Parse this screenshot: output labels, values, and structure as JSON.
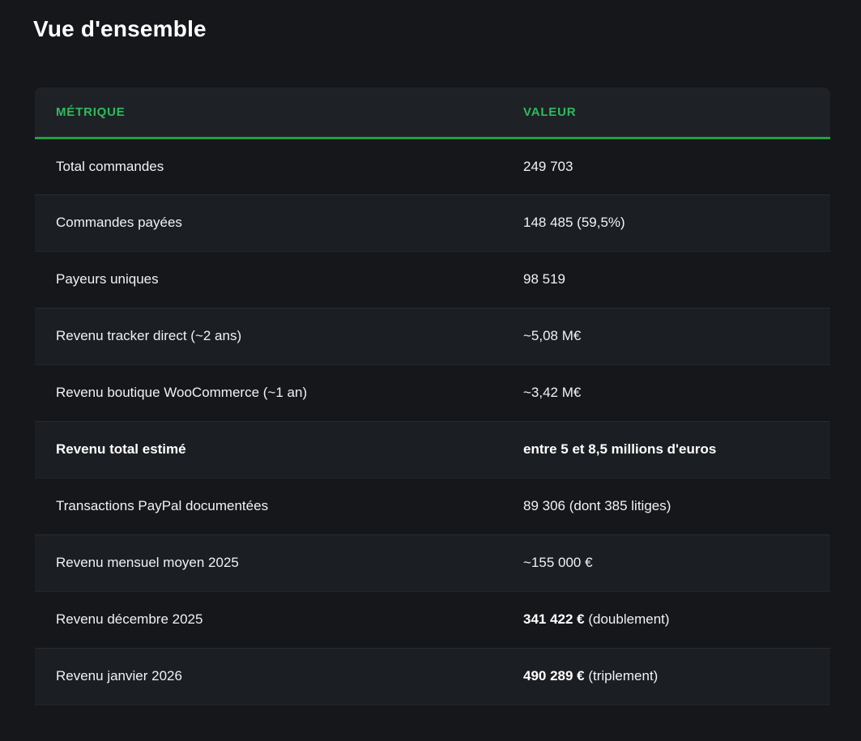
{
  "title": "Vue d'ensemble",
  "colors": {
    "accent_green_text": "#2dbb5c",
    "accent_green_line": "#23a03f",
    "page_background": "#15171b",
    "row_alt_background": "#1b1e22",
    "header_background": "#1e2226",
    "text": "#f0f2f4"
  },
  "table": {
    "columns": [
      "MÉTRIQUE",
      "VALEUR"
    ],
    "rows": [
      {
        "metric": "Total commandes",
        "value": "249 703"
      },
      {
        "metric": "Commandes payées",
        "value": "148 485 (59,5%)"
      },
      {
        "metric": "Payeurs uniques",
        "value": "98 519"
      },
      {
        "metric": "Revenu tracker direct (~2 ans)",
        "value": "~5,08 M€"
      },
      {
        "metric": "Revenu boutique WooCommerce (~1 an)",
        "value": "~3,42 M€"
      },
      {
        "metric": "Revenu total estimé",
        "value": "entre 5 et 8,5 millions d'euros",
        "bold": true
      },
      {
        "metric": "Transactions PayPal documentées",
        "value": "89 306 (dont 385 litiges)"
      },
      {
        "metric": "Revenu mensuel moyen 2025",
        "value": "~155 000 €"
      },
      {
        "metric": "Revenu décembre 2025",
        "value_bold": "341 422 €",
        "value_rest": " (doublement)"
      },
      {
        "metric": "Revenu janvier 2026",
        "value_bold": "490 289 €",
        "value_rest": " (triplement)"
      }
    ]
  },
  "chart_data": {
    "type": "table",
    "title": "Vue d'ensemble",
    "columns": [
      "MÉTRIQUE",
      "VALEUR"
    ],
    "rows": [
      [
        "Total commandes",
        "249 703"
      ],
      [
        "Commandes payées",
        "148 485 (59,5%)"
      ],
      [
        "Payeurs uniques",
        "98 519"
      ],
      [
        "Revenu tracker direct (~2 ans)",
        "~5,08 M€"
      ],
      [
        "Revenu boutique WooCommerce (~1 an)",
        "~3,42 M€"
      ],
      [
        "Revenu total estimé",
        "entre 5 et 8,5 millions d'euros"
      ],
      [
        "Transactions PayPal documentées",
        "89 306 (dont 385 litiges)"
      ],
      [
        "Revenu mensuel moyen 2025",
        "~155 000 €"
      ],
      [
        "Revenu décembre 2025",
        "341 422 € (doublement)"
      ],
      [
        "Revenu janvier 2026",
        "490 289 € (triplement)"
      ]
    ]
  }
}
